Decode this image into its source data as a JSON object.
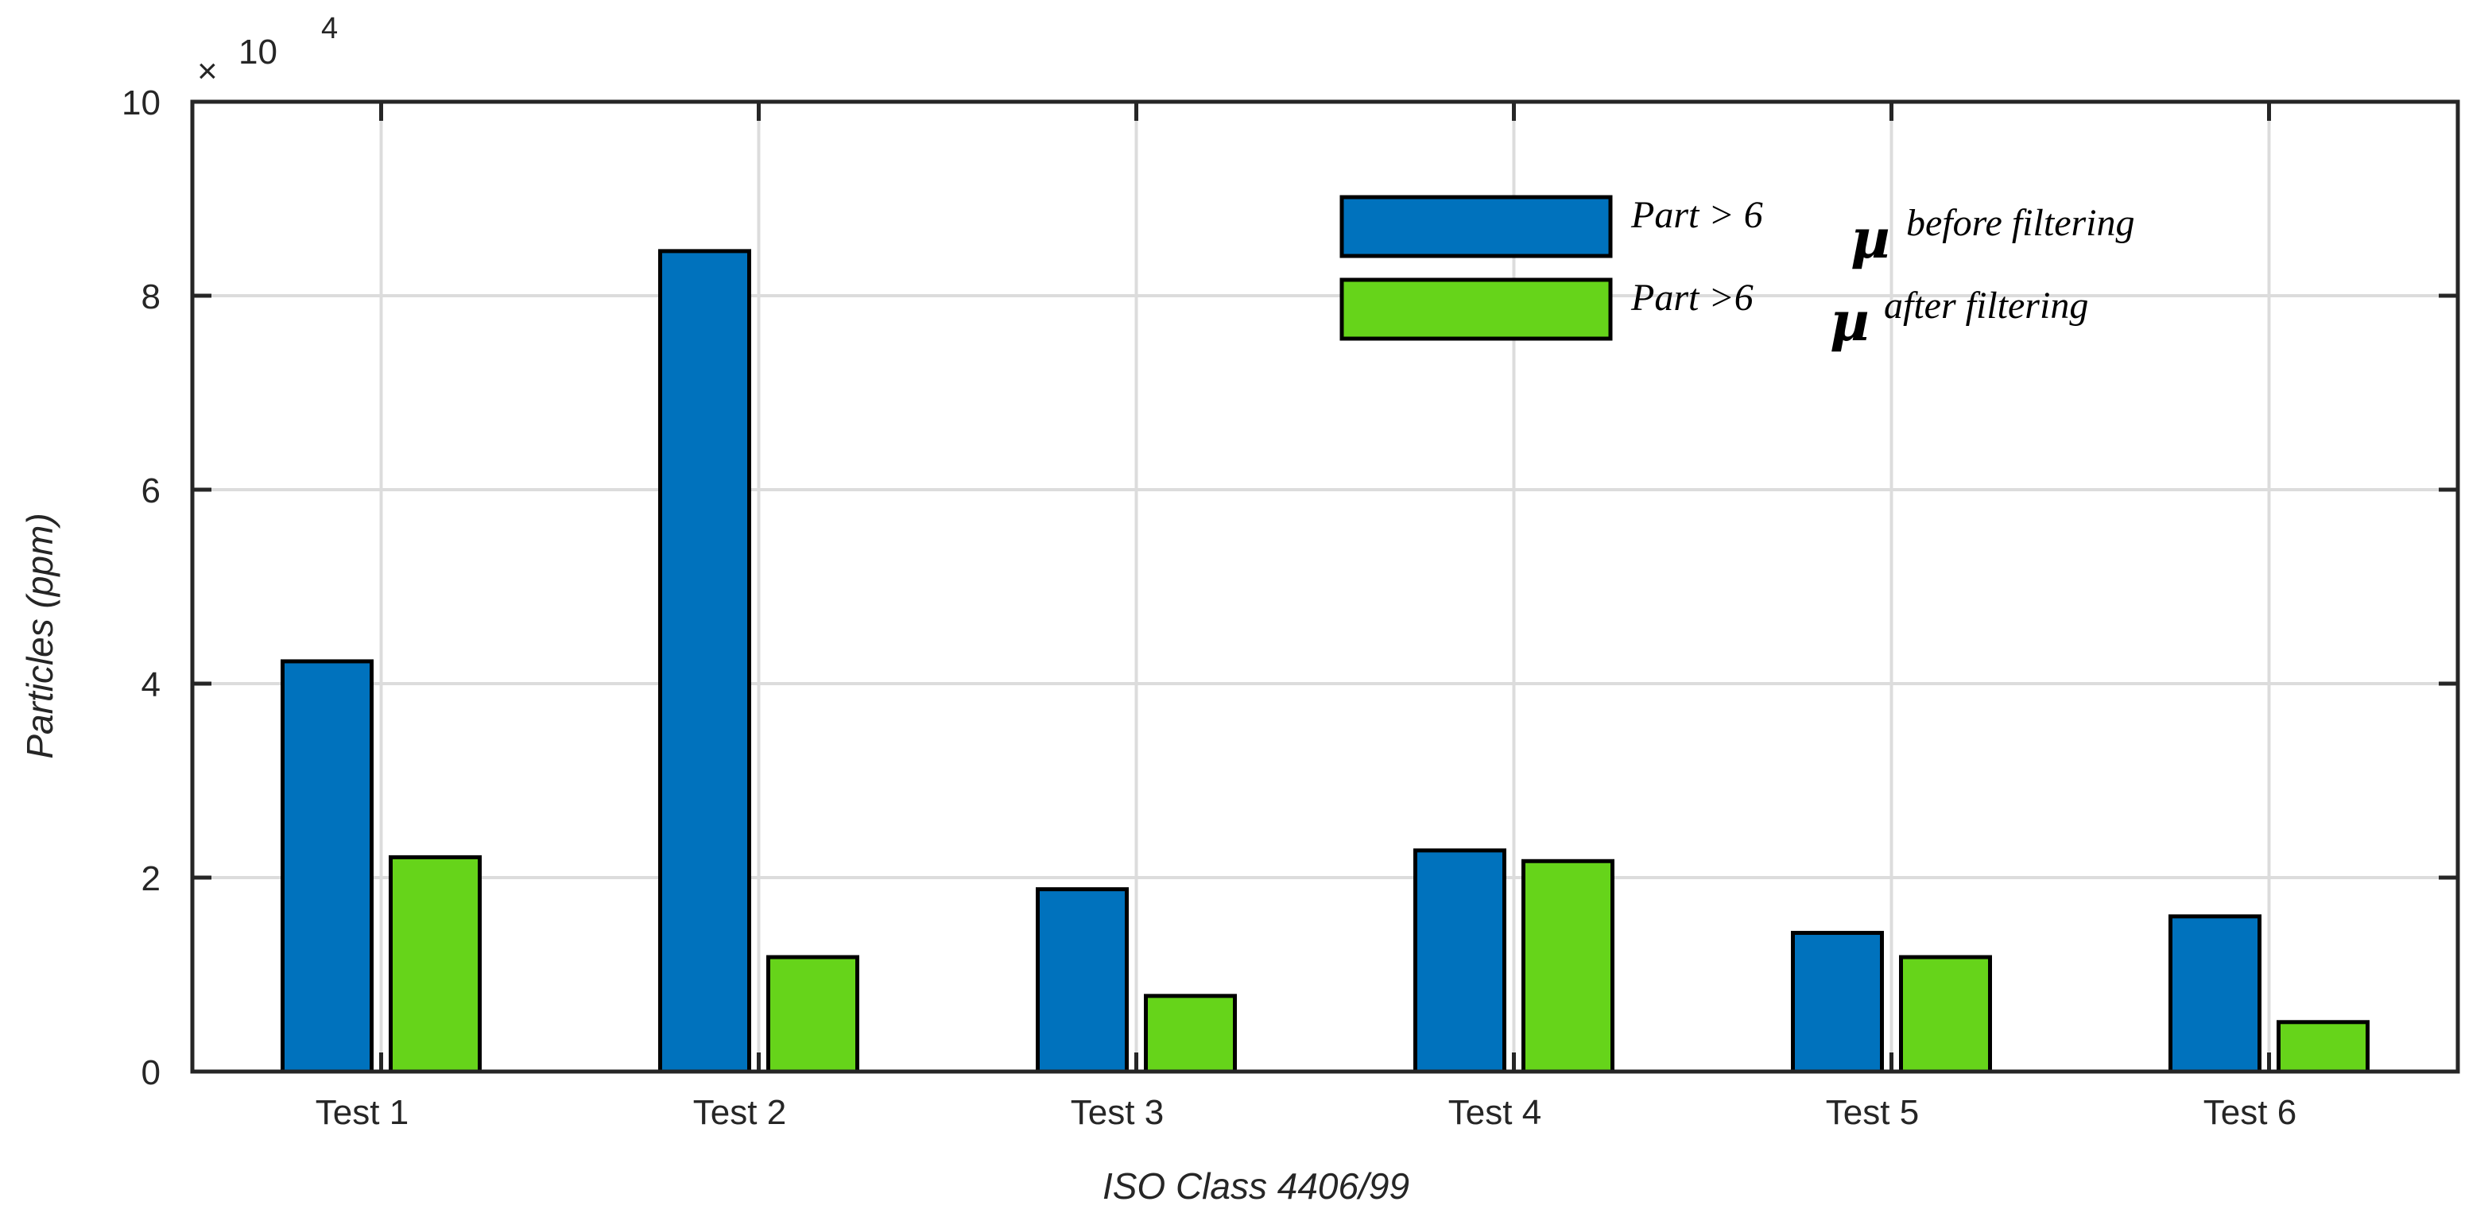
{
  "chart_data": {
    "type": "bar",
    "categories": [
      "Test 1",
      "Test 2",
      "Test 3",
      "Test 4",
      "Test 5",
      "Test 6"
    ],
    "series": [
      {
        "name": "Part > 6 µ before filtering",
        "legend_prefix": "Part > 6",
        "legend_suffix": "before filtering",
        "color": "#0072BD",
        "values": [
          42300,
          84600,
          18800,
          22800,
          14300,
          16000
        ]
      },
      {
        "name": "Part >6 µ after filtering",
        "legend_prefix": "Part >6",
        "legend_suffix": "after filtering",
        "color": "#66D41A",
        "values": [
          22100,
          11800,
          7800,
          21700,
          11800,
          5100
        ]
      }
    ],
    "mu_symbol": "µ",
    "xlabel": "ISO Class 4406/99",
    "ylabel": "Particles (ppm)",
    "ylim": [
      0,
      100000
    ],
    "yticks": [
      0,
      2,
      4,
      6,
      8,
      10
    ],
    "y_exponent_base": "10",
    "y_exponent_power": "4",
    "y_multiplier_sign": "×",
    "grid": true,
    "legend_position": "top-right"
  }
}
